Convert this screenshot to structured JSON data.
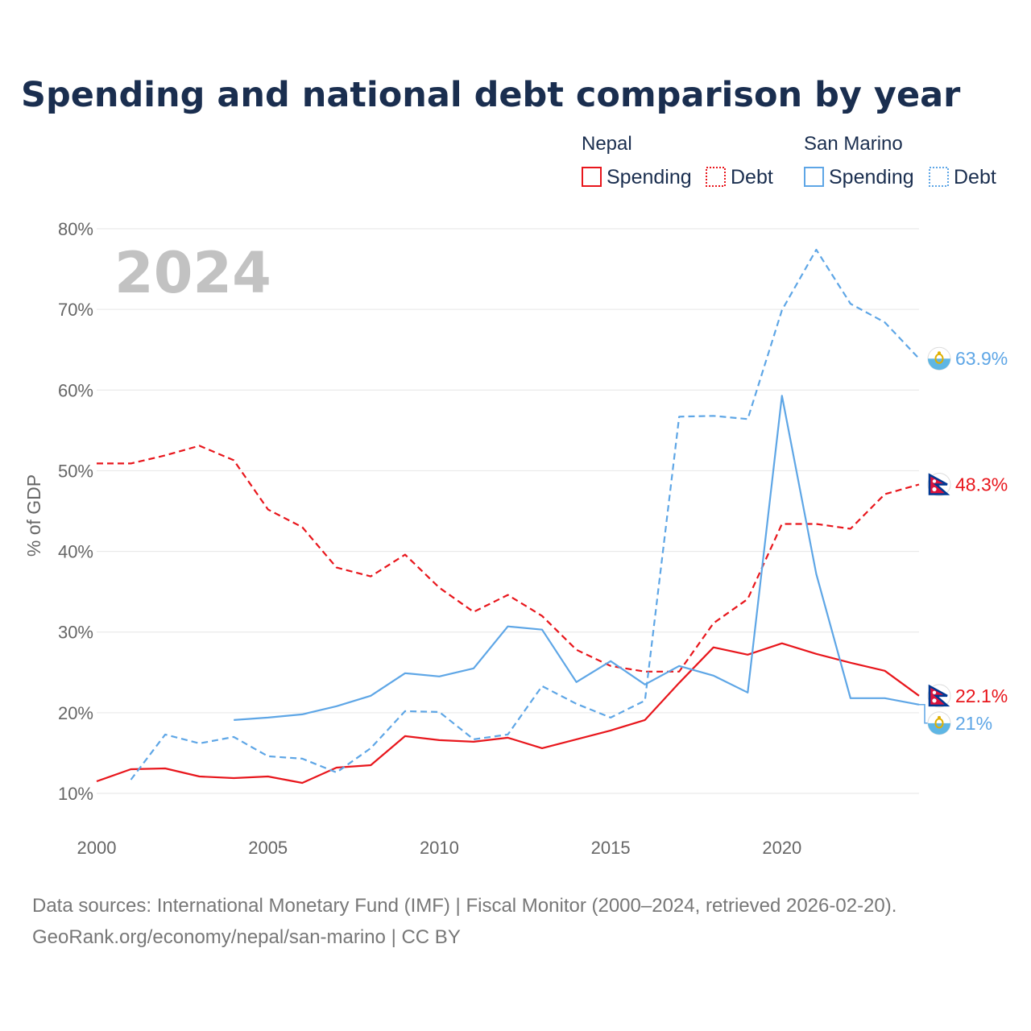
{
  "title": "Spending and national debt comparison by year",
  "legend": {
    "groups": [
      {
        "name": "Nepal",
        "color": "#e8161c",
        "items": [
          {
            "label": "Spending",
            "style": "solid"
          },
          {
            "label": "Debt",
            "style": "dotted"
          }
        ]
      },
      {
        "name": "San Marino",
        "color": "#5ea6e6",
        "items": [
          {
            "label": "Spending",
            "style": "solid"
          },
          {
            "label": "Debt",
            "style": "dotted"
          }
        ]
      }
    ]
  },
  "year_watermark": "2024",
  "source_lines": [
    "Data sources: International Monetary Fund (IMF) | Fiscal Monitor (2000–2024, retrieved 2026-02-20).",
    "GeoRank.org/economy/nepal/san-marino | CC BY"
  ],
  "chart_data": {
    "type": "line",
    "title": "Spending and national debt comparison by year",
    "xlabel": "",
    "ylabel": "% of GDP",
    "xlim": [
      2000,
      2024
    ],
    "ylim": [
      10,
      80
    ],
    "xticks": [
      2000,
      2005,
      2010,
      2015,
      2020
    ],
    "yticks": [
      10,
      20,
      30,
      40,
      50,
      60,
      70,
      80
    ],
    "ytick_labels": [
      "10%",
      "20%",
      "30%",
      "40%",
      "50%",
      "60%",
      "70%",
      "80%"
    ],
    "grid": true,
    "series": [
      {
        "name": "Nepal Spending",
        "country": "Nepal",
        "metric": "Spending",
        "color": "#e8161c",
        "dash": "solid",
        "x": [
          2000,
          2001,
          2002,
          2003,
          2004,
          2005,
          2006,
          2007,
          2008,
          2009,
          2010,
          2011,
          2012,
          2013,
          2014,
          2015,
          2016,
          2017,
          2018,
          2019,
          2020,
          2021,
          2022,
          2023,
          2024
        ],
        "values": [
          11.5,
          13.0,
          13.1,
          12.1,
          11.9,
          12.1,
          11.3,
          13.2,
          13.5,
          17.1,
          16.6,
          16.4,
          16.9,
          15.6,
          16.7,
          17.8,
          19.1,
          23.7,
          28.1,
          27.2,
          28.6,
          27.3,
          26.2,
          25.2,
          22.1
        ],
        "end_label": "22.1%"
      },
      {
        "name": "Nepal Debt",
        "country": "Nepal",
        "metric": "Debt",
        "color": "#e8161c",
        "dash": "dashed",
        "x": [
          2000,
          2001,
          2002,
          2003,
          2004,
          2005,
          2006,
          2007,
          2008,
          2009,
          2010,
          2011,
          2012,
          2013,
          2014,
          2015,
          2016,
          2017,
          2018,
          2019,
          2020,
          2021,
          2022,
          2023,
          2024
        ],
        "values": [
          50.9,
          50.9,
          51.9,
          53.1,
          51.3,
          45.2,
          43.0,
          38.0,
          36.9,
          39.6,
          35.5,
          32.5,
          34.6,
          32.0,
          27.8,
          25.8,
          25.1,
          25.1,
          31.1,
          34.1,
          43.4,
          43.4,
          42.8,
          47.1,
          48.3
        ],
        "end_label": "48.3%"
      },
      {
        "name": "San Marino Spending",
        "country": "San Marino",
        "metric": "Spending",
        "color": "#5ea6e6",
        "dash": "solid",
        "x": [
          2004,
          2005,
          2006,
          2007,
          2008,
          2009,
          2010,
          2011,
          2012,
          2013,
          2014,
          2015,
          2016,
          2017,
          2018,
          2019,
          2020,
          2021,
          2022,
          2023,
          2024
        ],
        "values": [
          19.1,
          19.4,
          19.8,
          20.8,
          22.1,
          24.9,
          24.5,
          25.5,
          30.7,
          30.3,
          23.8,
          26.4,
          23.5,
          25.8,
          24.6,
          22.5,
          59.3,
          37.2,
          21.8,
          21.8,
          21.0
        ],
        "end_label": "21%"
      },
      {
        "name": "San Marino Debt",
        "country": "San Marino",
        "metric": "Debt",
        "color": "#5ea6e6",
        "dash": "dashed",
        "x": [
          2001,
          2002,
          2003,
          2004,
          2005,
          2006,
          2007,
          2008,
          2009,
          2010,
          2011,
          2012,
          2013,
          2014,
          2015,
          2016,
          2017,
          2018,
          2019,
          2020,
          2021,
          2022,
          2023,
          2024
        ],
        "values": [
          11.7,
          17.3,
          16.2,
          17.0,
          14.6,
          14.3,
          12.6,
          15.6,
          20.2,
          20.1,
          16.7,
          17.3,
          23.3,
          21.1,
          19.4,
          21.5,
          56.7,
          56.8,
          56.4,
          69.9,
          77.4,
          70.7,
          68.4,
          63.9
        ],
        "end_label": "63.9%"
      }
    ]
  }
}
